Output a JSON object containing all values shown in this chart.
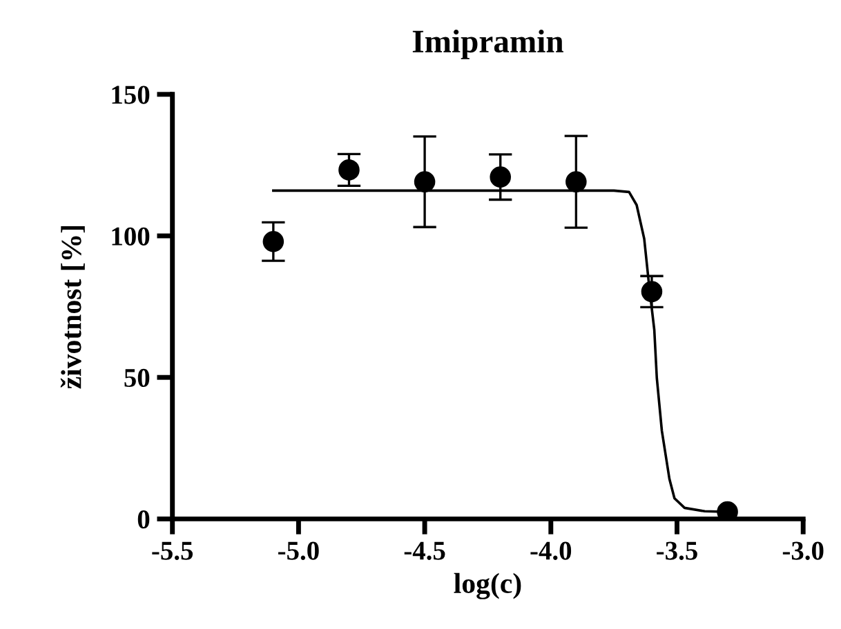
{
  "chart_data": {
    "type": "scatter",
    "title": "Imipramin",
    "xlabel": "log(c)",
    "ylabel": "životnost [%]",
    "xlim": [
      -5.5,
      -3.0
    ],
    "xticks": [
      {
        "value": -5.5,
        "label": "-5.5"
      },
      {
        "value": -5.0,
        "label": "-5.0"
      },
      {
        "value": -4.5,
        "label": "-4.5"
      },
      {
        "value": -4.0,
        "label": "-4.0"
      },
      {
        "value": -3.5,
        "label": "-3.5"
      },
      {
        "value": -3.0,
        "label": "-3.0"
      }
    ],
    "ylim": [
      0,
      150
    ],
    "yticks": [
      0,
      50,
      100,
      150
    ],
    "grid": false,
    "series": [
      {
        "color": "#000000",
        "marker": "circle",
        "x": [
          -5.1,
          -4.8,
          -4.5,
          -4.2,
          -3.9,
          -3.6,
          -3.3
        ],
        "values": [
          98.0,
          123.3,
          119.1,
          120.8,
          119.1,
          80.3,
          2.5
        ],
        "errors": [
          6.8,
          5.6,
          16,
          8,
          16.2,
          5.5,
          null
        ]
      },
      {
        "type": "line",
        "color": "#000000",
        "marker": "none",
        "line_style": "solid",
        "x": [
          -5.1,
          -3.75,
          -3.69,
          -3.66,
          -3.63,
          -3.61,
          -3.59,
          -3.58,
          -3.56,
          -3.53,
          -3.51,
          -3.47,
          -3.39,
          -3.3
        ],
        "values": [
          116,
          116,
          115.5,
          110.9,
          99,
          82,
          66.8,
          49.8,
          31.1,
          14.1,
          7.3,
          3.9,
          2.7,
          2.5
        ]
      }
    ]
  }
}
